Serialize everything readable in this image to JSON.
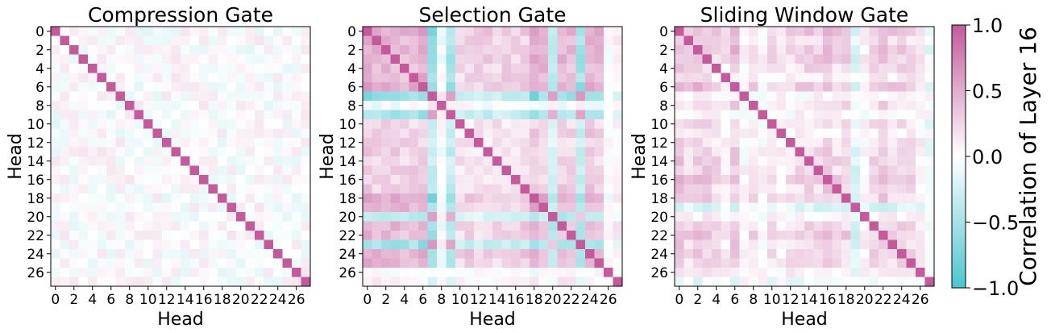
{
  "chart_data": {
    "type": "heatmap",
    "colorbar": {
      "label": "Correlation of Layer 16",
      "range": [
        -1.0,
        1.0
      ],
      "ticks": [
        1.0,
        0.5,
        0.0,
        -0.5,
        -1.0
      ],
      "tick_labels": [
        "1.0",
        "0.5",
        "0.0",
        "−0.5",
        "−1.0"
      ],
      "colors": {
        "negative": "#4bc5d1",
        "zero": "#ffffff",
        "positive": "#c45a9c"
      }
    },
    "panels": [
      {
        "title": "Compression Gate",
        "xlabel": "Head",
        "ylabel": "Head",
        "size": 28,
        "tick_labels": [
          "0",
          "2",
          "4",
          "6",
          "8",
          "10",
          "12",
          "14",
          "16",
          "18",
          "20",
          "22",
          "24",
          "26"
        ],
        "group_profile": [
          0.02,
          0.06,
          0.03,
          0.05,
          0.02,
          0.04,
          -0.1,
          0.02,
          0.12,
          0.05,
          0.03,
          0.06,
          0.02,
          0.08,
          0.05,
          0.03,
          0.07,
          0.02,
          -0.05,
          0.04,
          -0.12,
          0.05,
          0.08,
          0.03,
          0.04,
          0.02,
          0.06,
          0.03
        ],
        "noise_amplitude": 0.16,
        "diagonal": 1.0
      },
      {
        "title": "Selection Gate",
        "xlabel": "Head",
        "ylabel": "Head",
        "size": 28,
        "tick_labels": [
          "0",
          "2",
          "4",
          "6",
          "8",
          "10",
          "12",
          "14",
          "16",
          "18",
          "20",
          "22",
          "24",
          "26"
        ],
        "group_profile": [
          0.6,
          0.5,
          0.55,
          0.55,
          0.5,
          0.5,
          0.6,
          -0.7,
          -0.05,
          -0.55,
          0.3,
          0.35,
          0.3,
          0.35,
          0.3,
          0.35,
          0.3,
          0.35,
          0.6,
          0.5,
          -0.45,
          0.5,
          0.45,
          -0.6,
          0.55,
          0.5,
          0.0,
          0.1
        ],
        "noise_amplitude": 0.12,
        "diagonal": 1.0
      },
      {
        "title": "Sliding Window Gate",
        "xlabel": "Head",
        "ylabel": "Head",
        "size": 28,
        "tick_labels": [
          "0",
          "2",
          "4",
          "6",
          "8",
          "10",
          "12",
          "14",
          "16",
          "18",
          "20",
          "22",
          "24",
          "26"
        ],
        "group_profile": [
          0.55,
          0.35,
          0.5,
          0.45,
          0.35,
          0.2,
          0.55,
          0.05,
          0.3,
          0.05,
          0.3,
          0.15,
          0.3,
          0.35,
          0.4,
          0.4,
          0.5,
          0.35,
          0.4,
          -0.3,
          0.1,
          0.35,
          0.5,
          0.35,
          0.4,
          0.35,
          0.15,
          -0.15
        ],
        "noise_amplitude": 0.12,
        "diagonal": 1.0
      }
    ]
  }
}
